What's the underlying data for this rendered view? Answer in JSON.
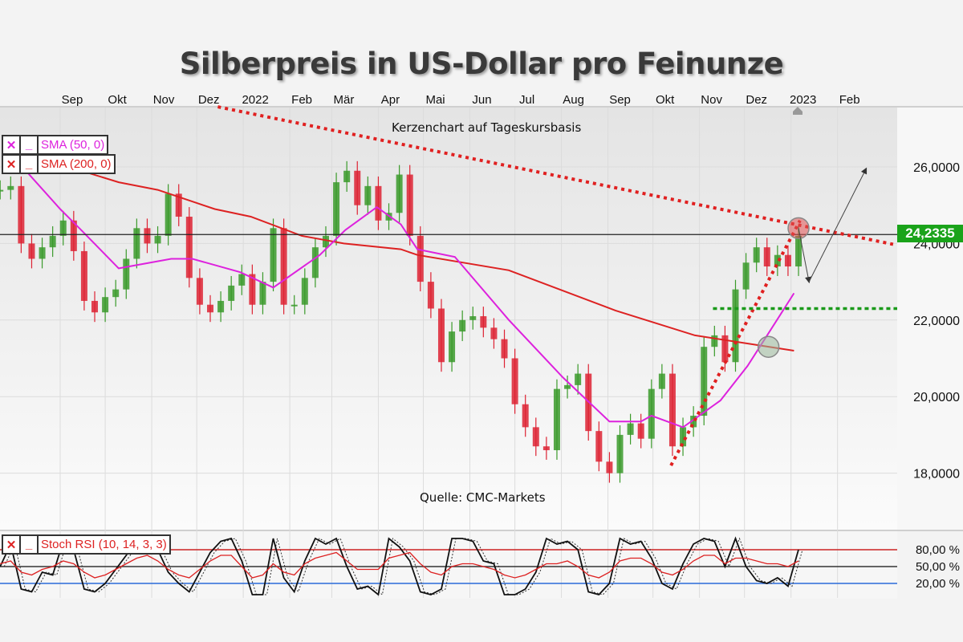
{
  "title": "Silberpreis in US-Dollar pro Feinunze",
  "annotations": {
    "chart_type_note": "Kerzenchart auf Tageskursbasis",
    "source": "Quelle: CMC-Markets"
  },
  "legend": {
    "sma50": {
      "label": "SMA (50, 0)",
      "color": "#dd22dd",
      "close_icon": "x-icon",
      "minimize_icon": "minus-icon"
    },
    "sma200": {
      "label": "SMA (200, 0)",
      "color": "#dd2222",
      "close_icon": "x-icon",
      "minimize_icon": "minus-icon"
    },
    "stoch": {
      "label": "Stoch RSI (10, 14, 3, 3)",
      "color": "#dd2222",
      "close_icon": "x-icon",
      "minimize_icon": "minus-icon"
    }
  },
  "colors": {
    "up": "#3a9a2a",
    "down": "#dd2233",
    "trendline": "#e02020",
    "support": "#1a9a1a",
    "price_tag": "#1aa31a",
    "rsi_low": "#2a6ad8",
    "rsi_high": "#cc2222"
  },
  "chart_data": [
    {
      "type": "candlestick",
      "title": "Silberpreis in US-Dollar pro Feinunze",
      "x_ticks": [
        {
          "label": "Sep",
          "date": "2021-09-01"
        },
        {
          "label": "Okt",
          "date": "2021-10-01"
        },
        {
          "label": "Nov",
          "date": "2021-11-01"
        },
        {
          "label": "Dez",
          "date": "2021-12-01"
        },
        {
          "label": "2022",
          "date": "2022-01-01"
        },
        {
          "label": "Feb",
          "date": "2022-02-01"
        },
        {
          "label": "Mär",
          "date": "2022-03-01"
        },
        {
          "label": "Apr",
          "date": "2022-04-01"
        },
        {
          "label": "Mai",
          "date": "2022-05-01"
        },
        {
          "label": "Jun",
          "date": "2022-06-01"
        },
        {
          "label": "Jul",
          "date": "2022-07-01"
        },
        {
          "label": "Aug",
          "date": "2022-08-01"
        },
        {
          "label": "Sep",
          "date": "2022-09-01"
        },
        {
          "label": "Okt",
          "date": "2022-10-01"
        },
        {
          "label": "Nov",
          "date": "2022-11-01"
        },
        {
          "label": "Dez",
          "date": "2022-12-01"
        },
        {
          "label": "2023",
          "date": "2023-01-01"
        },
        {
          "label": "Feb",
          "date": "2023-02-01"
        }
      ],
      "y_ticks": [
        {
          "label": "26,0000",
          "value": 26
        },
        {
          "label": "24,0000",
          "value": 24
        },
        {
          "label": "22,0000",
          "value": 22
        },
        {
          "label": "20,0000",
          "value": 20
        },
        {
          "label": "18,0000",
          "value": 18
        }
      ],
      "ylim": [
        17.0,
        27.6
      ],
      "grid": true,
      "last_price": {
        "label": "24,2335",
        "value": 24.2335
      },
      "weekly_start": "2021-07-23",
      "closes": [
        25.4,
        25.5,
        24.0,
        23.6,
        23.9,
        24.2,
        24.6,
        23.8,
        22.5,
        22.2,
        22.6,
        22.8,
        23.6,
        24.4,
        24.0,
        24.2,
        25.3,
        24.7,
        23.1,
        22.4,
        22.2,
        22.5,
        22.9,
        23.2,
        22.4,
        23.0,
        24.4,
        22.4,
        22.4,
        23.1,
        23.9,
        24.2,
        25.6,
        25.9,
        25.0,
        25.5,
        24.6,
        24.8,
        25.8,
        24.2,
        23.0,
        22.3,
        20.9,
        21.7,
        22.0,
        22.1,
        21.8,
        21.5,
        21.0,
        19.8,
        19.2,
        18.7,
        18.6,
        20.2,
        20.3,
        20.6,
        19.1,
        18.3,
        18.0,
        19.0,
        19.3,
        18.9,
        20.2,
        20.6,
        18.7,
        19.2,
        19.5,
        21.3,
        21.6,
        20.9,
        22.8,
        23.5,
        23.9,
        23.4,
        23.7,
        23.4,
        24.2
      ],
      "sma200": [
        [
          "2021-08-08",
          26.4
        ],
        [
          "2021-09-15",
          25.9
        ],
        [
          "2021-10-10",
          25.6
        ],
        [
          "2021-11-05",
          25.4
        ],
        [
          "2021-12-13",
          24.9
        ],
        [
          "2022-01-06",
          24.7
        ],
        [
          "2022-02-09",
          24.2
        ],
        [
          "2022-03-09",
          24.0
        ],
        [
          "2022-04-16",
          23.85
        ],
        [
          "2022-04-27",
          23.7
        ],
        [
          "2022-06-27",
          23.3
        ],
        [
          "2022-09-06",
          22.25
        ],
        [
          "2022-10-29",
          21.6
        ],
        [
          "2023-01-03",
          21.2
        ]
      ],
      "sma50": [
        [
          "2021-08-08",
          25.95
        ],
        [
          "2021-09-01",
          24.9
        ],
        [
          "2021-09-15",
          24.35
        ],
        [
          "2021-10-10",
          23.35
        ],
        [
          "2021-11-14",
          23.6
        ],
        [
          "2021-11-28",
          23.6
        ],
        [
          "2021-12-30",
          23.25
        ],
        [
          "2022-01-21",
          22.85
        ],
        [
          "2022-02-21",
          23.7
        ],
        [
          "2022-03-10",
          24.35
        ],
        [
          "2022-03-31",
          24.95
        ],
        [
          "2022-04-16",
          24.5
        ],
        [
          "2022-04-27",
          23.85
        ],
        [
          "2022-05-22",
          23.65
        ],
        [
          "2022-06-27",
          22.0
        ],
        [
          "2022-08-02",
          20.5
        ],
        [
          "2022-09-02",
          19.35
        ],
        [
          "2022-09-23",
          19.35
        ],
        [
          "2022-09-30",
          19.5
        ],
        [
          "2022-10-21",
          19.2
        ],
        [
          "2022-11-15",
          19.9
        ],
        [
          "2022-12-03",
          20.8
        ],
        [
          "2022-12-21",
          21.9
        ],
        [
          "2023-01-03",
          22.7
        ]
      ],
      "resistance_line": [
        [
          "2021-12-15",
          27.57
        ],
        [
          "2023-03-10",
          23.98
        ]
      ],
      "support_line": [
        [
          "2022-10-13",
          18.2
        ],
        [
          "2023-01-07",
          24.6
        ]
      ],
      "horizontal_support": {
        "from": "2022-11-10",
        "value": 22.3
      },
      "markers": [
        {
          "date": "2023-01-06",
          "value": 24.4,
          "color": "#e05050"
        },
        {
          "date": "2022-12-17",
          "value": 21.3,
          "color": "#9ab89a"
        }
      ],
      "projection_arrows": [
        [
          "2023-01-06",
          24.4
        ],
        [
          "2023-01-13",
          23.0
        ],
        [
          "2023-02-20",
          25.95
        ]
      ]
    },
    {
      "type": "line",
      "title": "Stoch RSI (10, 14, 3, 3)",
      "y_ticks": [
        {
          "label": "80,00 %",
          "value": 80
        },
        {
          "label": "50,00 %",
          "value": 50
        },
        {
          "label": "20,00 %",
          "value": 20
        }
      ],
      "ylim": [
        0,
        100
      ],
      "weekly_start": "2021-07-23",
      "series": [
        {
          "color": "#111111",
          "values": [
            50,
            90,
            10,
            5,
            40,
            35,
            95,
            80,
            10,
            5,
            20,
            45,
            70,
            95,
            100,
            80,
            40,
            20,
            5,
            40,
            75,
            95,
            100,
            60,
            0,
            0,
            100,
            30,
            5,
            60,
            100,
            90,
            100,
            50,
            10,
            15,
            0,
            100,
            85,
            60,
            5,
            0,
            10,
            100,
            100,
            95,
            60,
            55,
            0,
            0,
            10,
            40,
            100,
            90,
            95,
            80,
            5,
            0,
            20,
            100,
            90,
            95,
            65,
            20,
            10,
            55,
            90,
            100,
            95,
            50,
            100,
            50,
            25,
            20,
            30,
            15,
            80
          ]
        },
        {
          "color": "#dd2222",
          "values": [
            55,
            60,
            40,
            35,
            45,
            50,
            60,
            55,
            40,
            30,
            35,
            45,
            55,
            65,
            70,
            60,
            45,
            35,
            30,
            45,
            60,
            70,
            70,
            50,
            30,
            35,
            55,
            40,
            35,
            55,
            65,
            70,
            75,
            60,
            45,
            45,
            45,
            65,
            70,
            75,
            55,
            40,
            35,
            50,
            55,
            55,
            50,
            45,
            35,
            30,
            35,
            45,
            55,
            55,
            60,
            50,
            35,
            30,
            40,
            60,
            65,
            65,
            55,
            40,
            35,
            45,
            60,
            70,
            70,
            55,
            65,
            65,
            60,
            55,
            55,
            50,
            60
          ]
        }
      ]
    }
  ]
}
